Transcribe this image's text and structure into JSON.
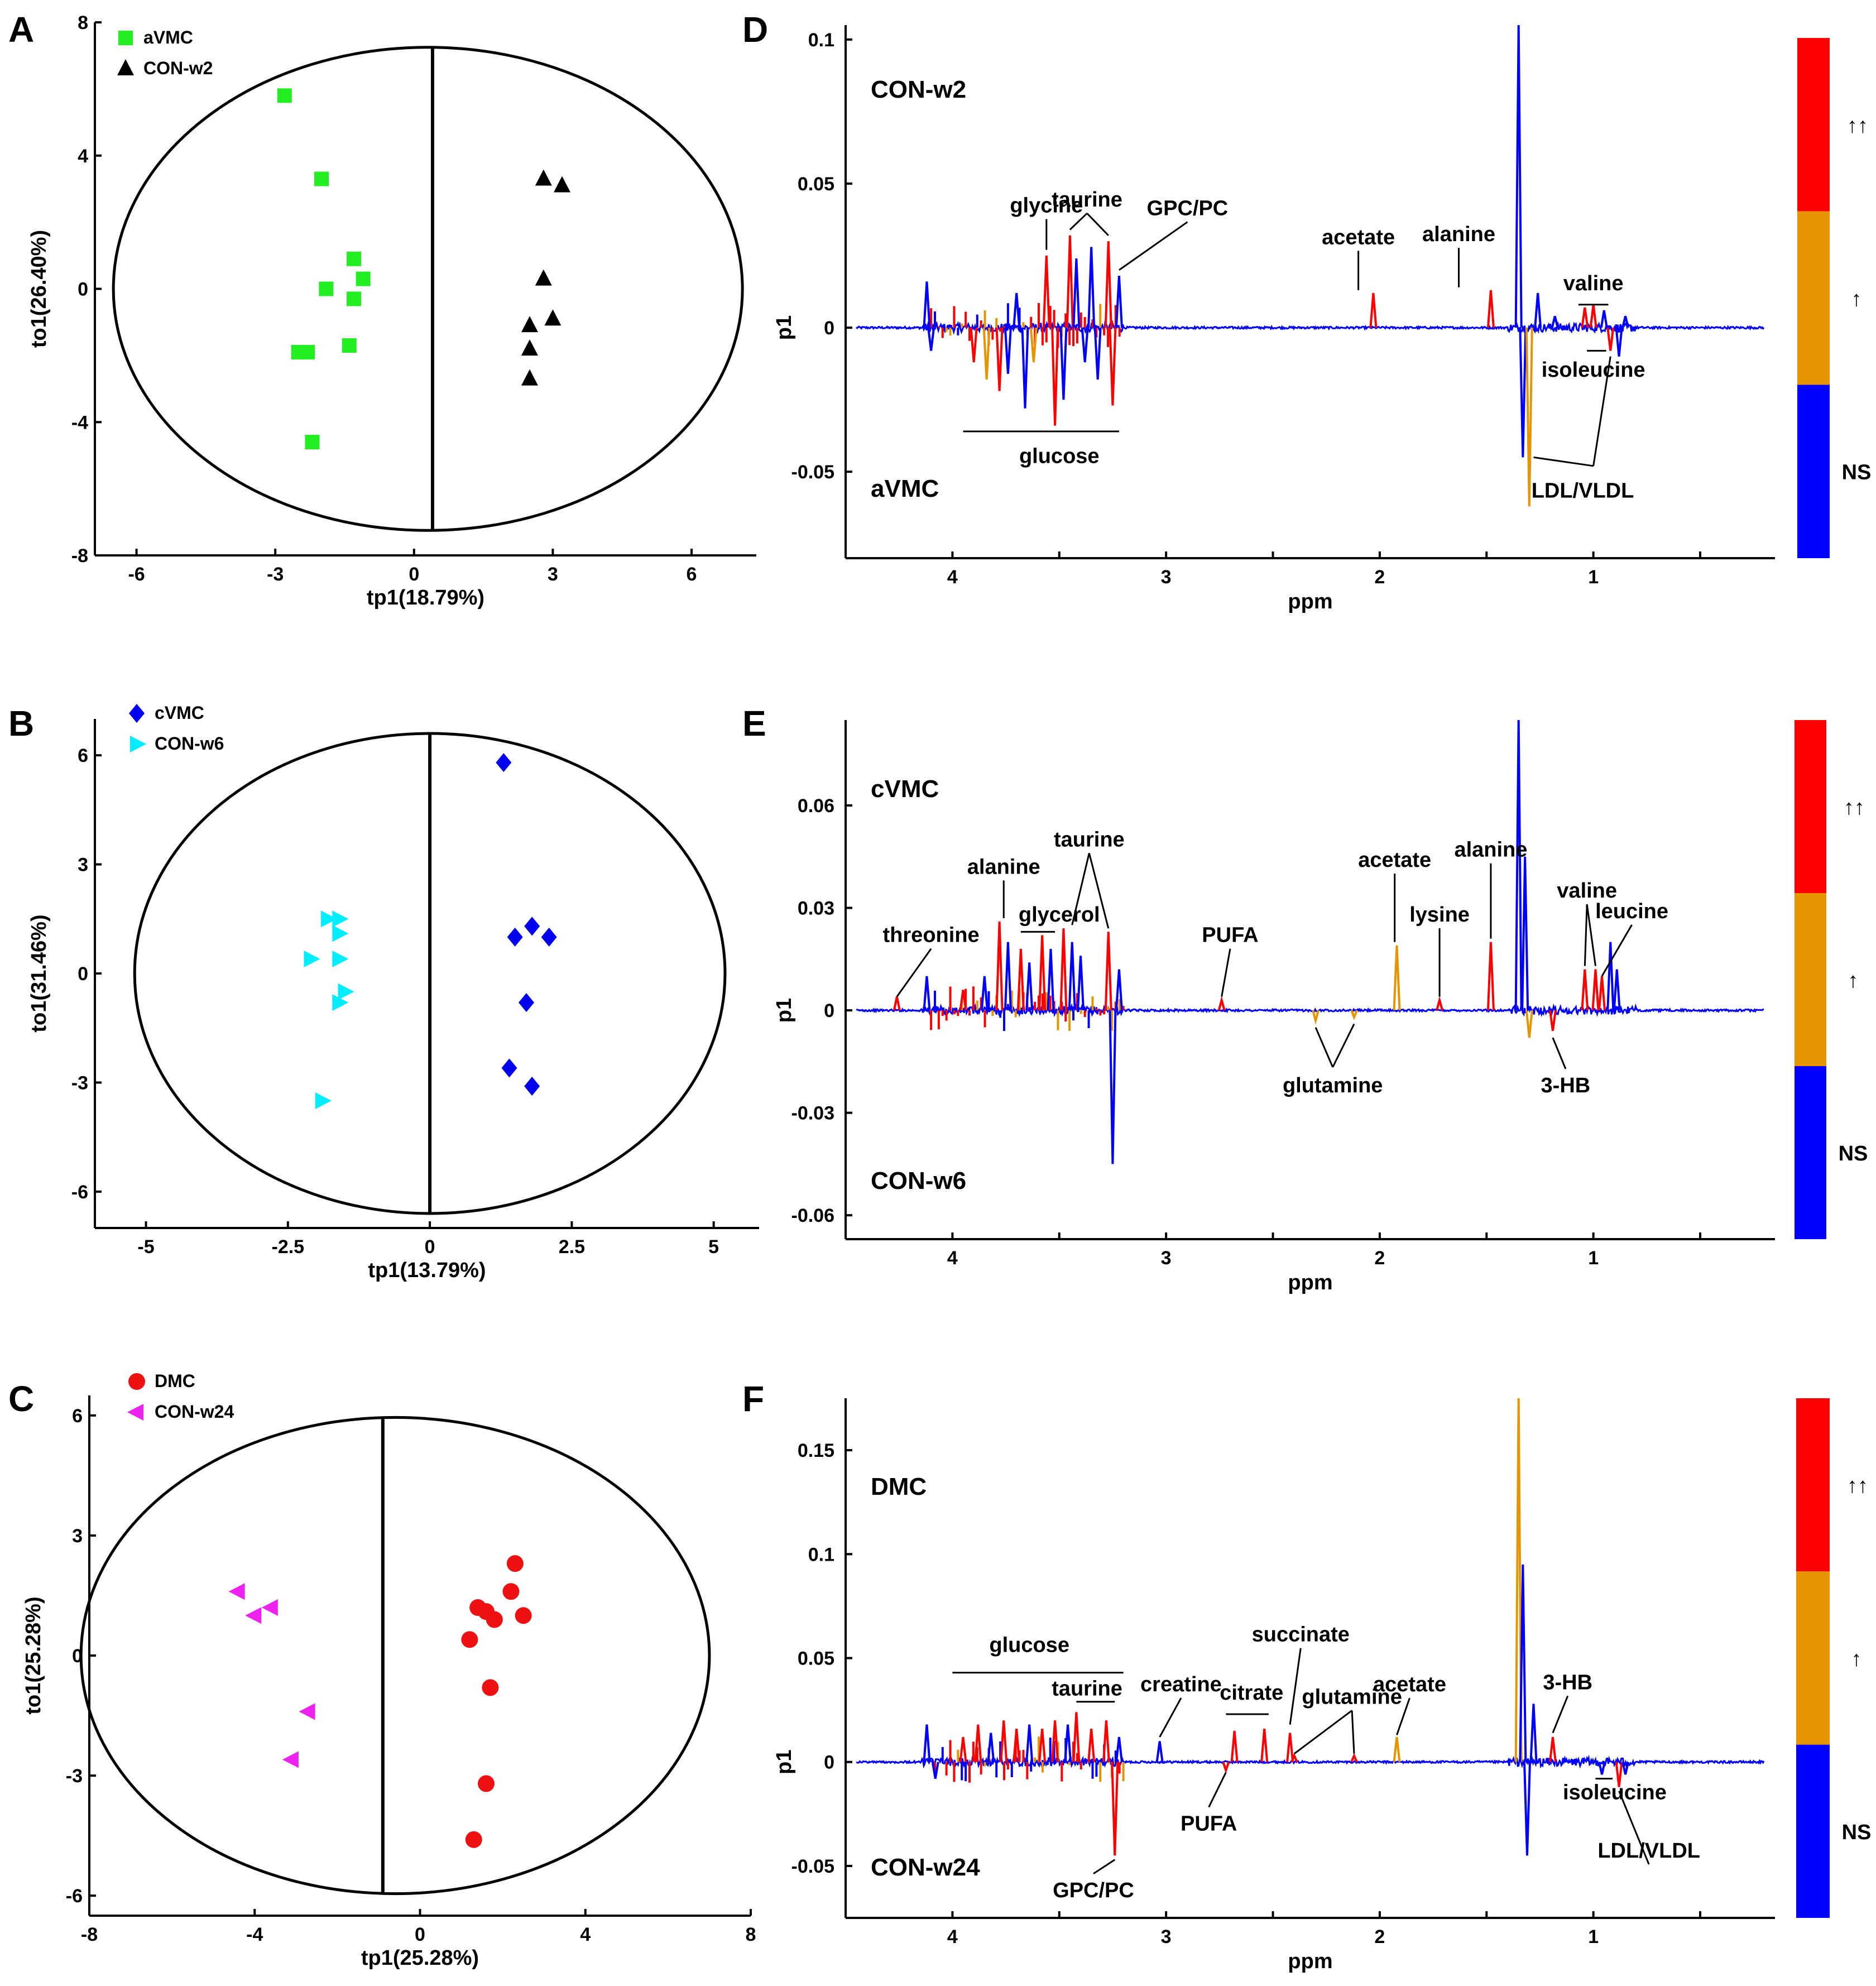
{
  "chart_data": [
    {
      "panel": "A",
      "type": "scatter",
      "xlabel": "tp1(18.79%)",
      "ylabel": "to1(26.40%)",
      "xlim": [
        -6.9,
        7.4
      ],
      "ylim": [
        -8,
        8
      ],
      "xticks": [
        -6,
        -3,
        0,
        3,
        6
      ],
      "yticks": [
        -8,
        -4,
        0,
        4,
        8
      ],
      "ellipse": {
        "cx": 0.3,
        "cy": 0,
        "rx": 6.8,
        "ry": 7.25
      },
      "vline": 0.4,
      "series": [
        {
          "name": "aVMC",
          "marker": "square",
          "color": "#22ee22",
          "points": [
            [
              -2.8,
              5.8
            ],
            [
              -2.0,
              3.3
            ],
            [
              -1.3,
              0.9
            ],
            [
              -1.1,
              0.3
            ],
            [
              -1.3,
              -0.3
            ],
            [
              -1.9,
              0.0
            ],
            [
              -1.4,
              -1.7
            ],
            [
              -2.5,
              -1.9
            ],
            [
              -2.3,
              -1.9
            ],
            [
              -2.2,
              -4.6
            ]
          ]
        },
        {
          "name": "CON-w2",
          "marker": "triangle-up",
          "color": "#000000",
          "points": [
            [
              2.8,
              3.3
            ],
            [
              3.2,
              3.1
            ],
            [
              2.8,
              0.3
            ],
            [
              3.0,
              -0.9
            ],
            [
              2.5,
              -1.1
            ],
            [
              2.5,
              -1.8
            ],
            [
              2.5,
              -2.7
            ]
          ]
        }
      ]
    },
    {
      "panel": "B",
      "type": "scatter",
      "xlabel": "tp1(13.79%)",
      "ylabel": "to1(31.46%)",
      "xlim": [
        -5.9,
        5.8
      ],
      "ylim": [
        -7,
        7
      ],
      "xticks": [
        -5,
        -2.5,
        0,
        2.5,
        5
      ],
      "yticks": [
        -6,
        -3,
        0,
        3,
        6
      ],
      "xticklabels": [
        "-5",
        "-2.5",
        "0",
        "2.5",
        "5"
      ],
      "ellipse": {
        "cx": 0,
        "cy": 0,
        "rx": 5.2,
        "ry": 6.6
      },
      "vline": 0,
      "series": [
        {
          "name": "cVMC",
          "marker": "diamond",
          "color": "#0000ee",
          "points": [
            [
              1.3,
              5.8
            ],
            [
              1.8,
              1.3
            ],
            [
              1.5,
              1.0
            ],
            [
              2.1,
              1.0
            ],
            [
              1.7,
              -0.8
            ],
            [
              1.4,
              -2.6
            ],
            [
              1.8,
              -3.1
            ]
          ]
        },
        {
          "name": "CON-w6",
          "marker": "triangle-right",
          "color": "#00eeff",
          "points": [
            [
              -1.8,
              1.5
            ],
            [
              -1.6,
              1.5
            ],
            [
              -1.6,
              1.1
            ],
            [
              -2.1,
              0.4
            ],
            [
              -1.6,
              0.4
            ],
            [
              -1.5,
              -0.5
            ],
            [
              -1.6,
              -0.8
            ],
            [
              -1.9,
              -3.5
            ]
          ]
        }
      ]
    },
    {
      "panel": "C",
      "type": "scatter",
      "xlabel": "tp1(25.28%)",
      "ylabel": "to1(25.28%)",
      "xlim": [
        -8,
        8
      ],
      "ylim": [
        -6.5,
        6.5
      ],
      "xticks": [
        -8,
        -4,
        0,
        4,
        8
      ],
      "yticks": [
        -6,
        -3,
        0,
        3,
        6
      ],
      "ellipse": {
        "cx": -0.6,
        "cy": 0,
        "rx": 7.6,
        "ry": 5.95
      },
      "vline": -0.9,
      "series": [
        {
          "name": "DMC",
          "marker": "circle",
          "color": "#ee1111",
          "points": [
            [
              2.3,
              2.3
            ],
            [
              2.2,
              1.6
            ],
            [
              1.4,
              1.2
            ],
            [
              1.6,
              1.1
            ],
            [
              1.8,
              0.9
            ],
            [
              2.5,
              1.0
            ],
            [
              1.2,
              0.4
            ],
            [
              1.7,
              -0.8
            ],
            [
              1.6,
              -3.2
            ],
            [
              1.3,
              -4.6
            ]
          ]
        },
        {
          "name": "CON-w24",
          "marker": "triangle-left",
          "color": "#ee22ee",
          "points": [
            [
              -4.4,
              1.6
            ],
            [
              -3.6,
              1.2
            ],
            [
              -4.0,
              1.0
            ],
            [
              -2.7,
              -1.4
            ],
            [
              -3.1,
              -2.6
            ]
          ]
        }
      ]
    },
    {
      "panel": "D",
      "type": "line",
      "xlabel": "ppm",
      "ylabel": "p1",
      "xlim": [
        4.5,
        0.15
      ],
      "ylim": [
        -0.08,
        0.105
      ],
      "xticks": [
        4,
        3,
        2,
        1
      ],
      "yticks": [
        -0.05,
        0,
        0.05,
        0.1
      ],
      "yticklabels": [
        "-0.05",
        "0",
        "0.05",
        "0.1"
      ],
      "group_top": "CON-w2",
      "group_bottom": "aVMC",
      "peaks": [
        [
          4.12,
          0.016,
          "b"
        ],
        [
          4.1,
          -0.008,
          "b"
        ],
        [
          3.9,
          -0.012,
          "r"
        ],
        [
          3.84,
          -0.018,
          "o"
        ],
        [
          3.78,
          -0.022,
          "r"
        ],
        [
          3.74,
          -0.016,
          "b"
        ],
        [
          3.7,
          0.012,
          "b"
        ],
        [
          3.66,
          -0.028,
          "b"
        ],
        [
          3.62,
          -0.012,
          "o"
        ],
        [
          3.56,
          0.025,
          "r"
        ],
        [
          3.52,
          -0.034,
          "r"
        ],
        [
          3.48,
          -0.025,
          "b"
        ],
        [
          3.45,
          0.032,
          "r"
        ],
        [
          3.42,
          0.024,
          "b"
        ],
        [
          3.38,
          -0.012,
          "b"
        ],
        [
          3.35,
          0.028,
          "b"
        ],
        [
          3.32,
          -0.018,
          "b"
        ],
        [
          3.27,
          0.03,
          "r"
        ],
        [
          3.25,
          -0.027,
          "r"
        ],
        [
          3.22,
          0.018,
          "b"
        ],
        [
          2.03,
          0.012,
          "r"
        ],
        [
          1.48,
          0.013,
          "r"
        ],
        [
          1.35,
          0.105,
          "b"
        ],
        [
          1.33,
          -0.045,
          "b"
        ],
        [
          1.3,
          -0.062,
          "o"
        ],
        [
          1.26,
          0.012,
          "b"
        ],
        [
          1.18,
          0.004,
          "b"
        ],
        [
          1.04,
          0.007,
          "r"
        ],
        [
          1.0,
          0.008,
          "r"
        ],
        [
          0.95,
          0.006,
          "b"
        ],
        [
          0.92,
          -0.008,
          "r"
        ],
        [
          0.88,
          -0.01,
          "b"
        ],
        [
          0.85,
          0.004,
          "b"
        ]
      ],
      "labels": [
        "glycine",
        "taurine",
        "GPC/PC",
        "acetate",
        "alanine",
        "valine",
        "isoleucine",
        "glucose",
        "LDL/VLDL"
      ],
      "colorbar": [
        "NS",
        "↑",
        "↑↑"
      ]
    },
    {
      "panel": "E",
      "type": "line",
      "xlabel": "ppm",
      "ylabel": "p1",
      "xlim": [
        4.5,
        0.15
      ],
      "ylim": [
        -0.067,
        0.085
      ],
      "xticks": [
        4,
        3,
        2,
        1
      ],
      "yticks": [
        -0.06,
        -0.03,
        0,
        0.03,
        0.06
      ],
      "yticklabels": [
        "-0.06",
        "-0.03",
        "0",
        "0.03",
        "0.06"
      ],
      "group_top": "cVMC",
      "group_bottom": "CON-w6",
      "peaks": [
        [
          4.26,
          0.004,
          "r"
        ],
        [
          4.12,
          0.01,
          "b"
        ],
        [
          3.95,
          0.006,
          "r"
        ],
        [
          3.85,
          0.01,
          "b"
        ],
        [
          3.78,
          0.026,
          "r"
        ],
        [
          3.74,
          0.02,
          "b"
        ],
        [
          3.68,
          0.018,
          "r"
        ],
        [
          3.64,
          0.014,
          "b"
        ],
        [
          3.58,
          0.022,
          "r"
        ],
        [
          3.54,
          0.018,
          "b"
        ],
        [
          3.48,
          0.024,
          "r"
        ],
        [
          3.44,
          0.02,
          "b"
        ],
        [
          3.4,
          0.016,
          "b"
        ],
        [
          3.27,
          0.023,
          "r"
        ],
        [
          3.25,
          -0.045,
          "b"
        ],
        [
          3.22,
          0.012,
          "b"
        ],
        [
          2.74,
          0.003,
          "r"
        ],
        [
          2.3,
          -0.003,
          "o"
        ],
        [
          2.12,
          -0.002,
          "o"
        ],
        [
          1.92,
          0.019,
          "o"
        ],
        [
          1.72,
          0.003,
          "r"
        ],
        [
          1.48,
          0.02,
          "r"
        ],
        [
          1.35,
          0.085,
          "b"
        ],
        [
          1.32,
          0.045,
          "b"
        ],
        [
          1.3,
          -0.008,
          "o"
        ],
        [
          1.19,
          -0.006,
          "r"
        ],
        [
          1.04,
          0.012,
          "r"
        ],
        [
          0.99,
          0.012,
          "r"
        ],
        [
          0.96,
          0.01,
          "r"
        ],
        [
          0.92,
          0.02,
          "b"
        ],
        [
          0.89,
          0.012,
          "b"
        ]
      ],
      "labels": [
        "threonine",
        "alanine",
        "glycerol",
        "taurine",
        "PUFA",
        "glutamine",
        "acetate",
        "alanine",
        "lysine",
        "valine",
        "leucine",
        "3-HB"
      ],
      "colorbar": [
        "NS",
        "↑",
        "↑↑"
      ]
    },
    {
      "panel": "F",
      "type": "line",
      "xlabel": "ppm",
      "ylabel": "p1",
      "xlim": [
        4.5,
        0.15
      ],
      "ylim": [
        -0.075,
        0.175
      ],
      "xticks": [
        4,
        3,
        2,
        1
      ],
      "yticks": [
        -0.05,
        0,
        0.05,
        0.1,
        0.15
      ],
      "yticklabels": [
        "-0.05",
        "0",
        "0.05",
        "0.1",
        "0.15"
      ],
      "group_top": "DMC",
      "group_bottom": "CON-w24",
      "peaks": [
        [
          4.12,
          0.018,
          "b"
        ],
        [
          4.08,
          -0.008,
          "b"
        ],
        [
          3.95,
          0.012,
          "r"
        ],
        [
          3.88,
          0.018,
          "r"
        ],
        [
          3.82,
          0.014,
          "b"
        ],
        [
          3.76,
          0.02,
          "r"
        ],
        [
          3.7,
          0.016,
          "r"
        ],
        [
          3.64,
          0.018,
          "b"
        ],
        [
          3.58,
          0.016,
          "r"
        ],
        [
          3.52,
          0.02,
          "r"
        ],
        [
          3.46,
          0.018,
          "b"
        ],
        [
          3.42,
          0.024,
          "r"
        ],
        [
          3.35,
          0.016,
          "r"
        ],
        [
          3.28,
          0.02,
          "r"
        ],
        [
          3.24,
          -0.045,
          "r"
        ],
        [
          3.22,
          0.012,
          "b"
        ],
        [
          3.03,
          0.01,
          "b"
        ],
        [
          2.72,
          -0.004,
          "r"
        ],
        [
          2.68,
          0.015,
          "r"
        ],
        [
          2.54,
          0.016,
          "r"
        ],
        [
          2.42,
          0.014,
          "r"
        ],
        [
          2.4,
          0.003,
          "r"
        ],
        [
          2.12,
          0.003,
          "r"
        ],
        [
          1.92,
          0.012,
          "o"
        ],
        [
          1.35,
          0.175,
          "o"
        ],
        [
          1.33,
          0.095,
          "b"
        ],
        [
          1.31,
          -0.045,
          "b"
        ],
        [
          1.28,
          0.028,
          "b"
        ],
        [
          1.19,
          0.012,
          "r"
        ],
        [
          0.96,
          -0.006,
          "b"
        ],
        [
          0.88,
          -0.012,
          "r"
        ],
        [
          0.85,
          -0.006,
          "b"
        ]
      ],
      "labels": [
        "glucose",
        "taurine",
        "creatine",
        "citrate",
        "succinate",
        "glutamine",
        "acetate",
        "3-HB",
        "PUFA",
        "GPC/PC",
        "isoleucine",
        "LDL/VLDL"
      ],
      "colorbar": [
        "NS",
        "↑",
        "↑↑"
      ]
    }
  ],
  "colors": {
    "red": "#ff0000",
    "orange": "#e69500",
    "blue": "#0000ff"
  }
}
